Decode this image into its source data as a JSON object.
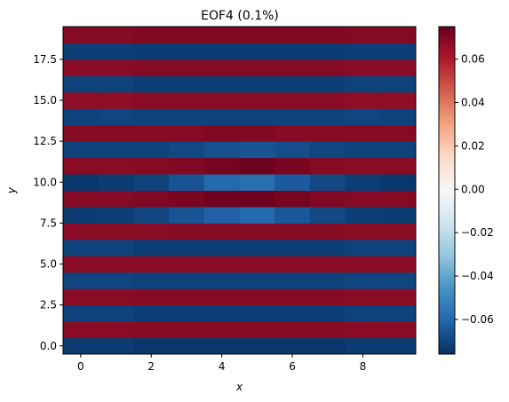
{
  "chart_data": {
    "type": "heatmap",
    "title": "EOF4 (0.1%)",
    "xlabel": "x",
    "ylabel": "y",
    "xlim": [
      -0.5,
      9.5
    ],
    "ylim": [
      -0.5,
      19.5
    ],
    "xticks": [
      0,
      2,
      4,
      6,
      8
    ],
    "xtick_labels": [
      "0",
      "2",
      "4",
      "6",
      "8"
    ],
    "yticks": [
      0.0,
      2.5,
      5.0,
      7.5,
      10.0,
      12.5,
      15.0,
      17.5
    ],
    "ytick_labels": [
      "0.0",
      "2.5",
      "5.0",
      "7.5",
      "10.0",
      "12.5",
      "15.0",
      "17.5"
    ],
    "colorbar": {
      "vmin": -0.076,
      "vmax": 0.075,
      "colormap": "RdBu_r",
      "ticks": [
        -0.06,
        -0.04,
        -0.02,
        0.0,
        0.02,
        0.04,
        0.06
      ],
      "tick_labels": [
        "−0.06",
        "−0.04",
        "−0.02",
        "0.00",
        "0.02",
        "0.04",
        "0.06"
      ]
    },
    "z": [
      [
        -0.073,
        -0.073,
        -0.074,
        -0.074,
        -0.074,
        -0.074,
        -0.074,
        -0.074,
        -0.073,
        -0.073
      ],
      [
        0.068,
        0.068,
        0.069,
        0.069,
        0.069,
        0.069,
        0.069,
        0.069,
        0.068,
        0.068
      ],
      [
        -0.071,
        -0.071,
        -0.072,
        -0.072,
        -0.072,
        -0.072,
        -0.072,
        -0.072,
        -0.071,
        -0.071
      ],
      [
        0.068,
        0.068,
        0.069,
        0.069,
        0.069,
        0.069,
        0.069,
        0.069,
        0.068,
        0.068
      ],
      [
        -0.07,
        -0.07,
        -0.071,
        -0.071,
        -0.071,
        -0.071,
        -0.071,
        -0.071,
        -0.07,
        -0.07
      ],
      [
        0.068,
        0.068,
        0.068,
        0.068,
        0.068,
        0.068,
        0.068,
        0.068,
        0.068,
        0.068
      ],
      [
        -0.071,
        -0.071,
        -0.072,
        -0.072,
        -0.072,
        -0.072,
        -0.072,
        -0.072,
        -0.071,
        -0.071
      ],
      [
        0.068,
        0.068,
        0.068,
        0.069,
        0.069,
        0.069,
        0.069,
        0.069,
        0.068,
        0.068
      ],
      [
        -0.073,
        -0.072,
        -0.07,
        -0.066,
        -0.062,
        -0.06,
        -0.065,
        -0.069,
        -0.072,
        -0.073
      ],
      [
        0.069,
        0.069,
        0.07,
        0.071,
        0.073,
        0.074,
        0.072,
        0.07,
        0.069,
        0.069
      ],
      [
        -0.074,
        -0.073,
        -0.071,
        -0.066,
        -0.06,
        -0.058,
        -0.064,
        -0.069,
        -0.072,
        -0.074
      ],
      [
        0.068,
        0.068,
        0.069,
        0.07,
        0.072,
        0.074,
        0.071,
        0.069,
        0.068,
        0.068
      ],
      [
        -0.071,
        -0.071,
        -0.071,
        -0.069,
        -0.067,
        -0.066,
        -0.068,
        -0.07,
        -0.071,
        -0.071
      ],
      [
        0.069,
        0.069,
        0.069,
        0.069,
        0.07,
        0.07,
        0.069,
        0.069,
        0.069,
        0.069
      ],
      [
        -0.071,
        -0.07,
        -0.071,
        -0.071,
        -0.071,
        -0.071,
        -0.071,
        -0.071,
        -0.07,
        -0.071
      ],
      [
        0.067,
        0.067,
        0.068,
        0.068,
        0.068,
        0.068,
        0.068,
        0.068,
        0.067,
        0.067
      ],
      [
        -0.071,
        -0.071,
        -0.072,
        -0.072,
        -0.072,
        -0.072,
        -0.072,
        -0.072,
        -0.071,
        -0.071
      ],
      [
        0.068,
        0.068,
        0.069,
        0.069,
        0.069,
        0.069,
        0.069,
        0.069,
        0.068,
        0.068
      ],
      [
        -0.072,
        -0.072,
        -0.073,
        -0.073,
        -0.073,
        -0.073,
        -0.073,
        -0.073,
        -0.072,
        -0.072
      ],
      [
        0.069,
        0.069,
        0.07,
        0.07,
        0.07,
        0.07,
        0.07,
        0.07,
        0.069,
        0.069
      ]
    ]
  }
}
